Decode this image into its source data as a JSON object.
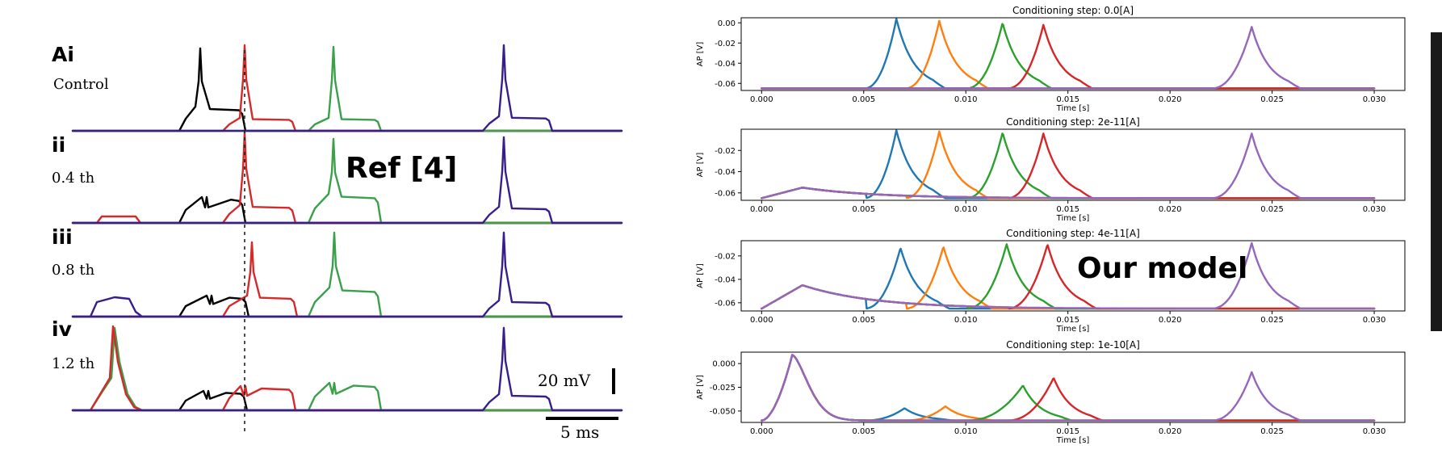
{
  "left_figure": {
    "panels": [
      {
        "letter": "Ai",
        "label": "Control"
      },
      {
        "letter": "ii",
        "label": "0.4 th"
      },
      {
        "letter": "iii",
        "label": "0.8 th"
      },
      {
        "letter": "iv",
        "label": "1.2 th"
      }
    ],
    "overlay_label": "Ref [4]",
    "scale_voltage": "20 mV",
    "scale_time": "5 ms"
  },
  "right_figure": {
    "overlay_label": "Our model",
    "xlabel": "Time [s]",
    "ylabel": "AP [V]"
  },
  "colors": {
    "blue": "#1f77b4",
    "orange": "#ff7f0e",
    "green": "#2ca02c",
    "red": "#d62728",
    "purple": "#9467bd",
    "ref_black": "#000000",
    "ref_red": "#d42a2a",
    "ref_green": "#3aa04a",
    "ref_purple": "#3a1d8c"
  },
  "chart_data": [
    {
      "type": "line",
      "title": "Conditioning step: 0.0[A]",
      "xlabel": "Time [s]",
      "ylabel": "AP [V]",
      "xlim": [
        -0.001,
        0.0315
      ],
      "ylim": [
        -0.067,
        0.005
      ],
      "xticks": [
        0.0,
        0.005,
        0.01,
        0.015,
        0.02,
        0.025,
        0.03
      ],
      "xtick_labels": [
        "0.000",
        "0.005",
        "0.010",
        "0.015",
        "0.020",
        "0.025",
        "0.030"
      ],
      "yticks": [
        0.0,
        -0.02,
        -0.04,
        -0.06
      ],
      "ytick_labels": [
        "0.00",
        "-0.02",
        "-0.04",
        "-0.06"
      ],
      "rest": -0.065,
      "series": [
        {
          "start": 0.005,
          "peak_t": 0.0066,
          "peak_v": 0.004,
          "color": "blue"
        },
        {
          "start": 0.007,
          "peak_t": 0.0087,
          "peak_v": 0.002,
          "color": "orange"
        },
        {
          "start": 0.01,
          "peak_t": 0.0118,
          "peak_v": 0.0,
          "color": "green"
        },
        {
          "start": 0.012,
          "peak_t": 0.0138,
          "peak_v": -0.002,
          "color": "red"
        },
        {
          "start": 0.022,
          "peak_t": 0.024,
          "peak_v": -0.004,
          "color": "purple"
        }
      ]
    },
    {
      "type": "line",
      "title": "Conditioning step: 2e-11[A]",
      "xlabel": "Time [s]",
      "ylabel": "AP [V]",
      "xlim": [
        -0.001,
        0.0315
      ],
      "ylim": [
        -0.067,
        0.0
      ],
      "xticks": [
        0.0,
        0.005,
        0.01,
        0.015,
        0.02,
        0.025,
        0.03
      ],
      "xtick_labels": [
        "0.000",
        "0.005",
        "0.010",
        "0.015",
        "0.020",
        "0.025",
        "0.030"
      ],
      "yticks": [
        -0.02,
        -0.04,
        -0.06
      ],
      "ytick_labels": [
        "-0.02",
        "-0.04",
        "-0.06"
      ],
      "rest": -0.065,
      "conditioning_peak": -0.055,
      "series": [
        {
          "start": 0.005,
          "peak_t": 0.0066,
          "peak_v": -0.001,
          "color": "blue"
        },
        {
          "start": 0.007,
          "peak_t": 0.0087,
          "peak_v": -0.002,
          "color": "orange"
        },
        {
          "start": 0.01,
          "peak_t": 0.0118,
          "peak_v": -0.003,
          "color": "green"
        },
        {
          "start": 0.012,
          "peak_t": 0.0138,
          "peak_v": -0.004,
          "color": "red"
        },
        {
          "start": 0.022,
          "peak_t": 0.024,
          "peak_v": -0.004,
          "color": "purple"
        }
      ]
    },
    {
      "type": "line",
      "title": "Conditioning step: 4e-11[A]",
      "xlabel": "Time [s]",
      "ylabel": "AP [V]",
      "xlim": [
        -0.001,
        0.0315
      ],
      "ylim": [
        -0.067,
        -0.007
      ],
      "xticks": [
        0.0,
        0.005,
        0.01,
        0.015,
        0.02,
        0.025,
        0.03
      ],
      "xtick_labels": [
        "0.000",
        "0.005",
        "0.010",
        "0.015",
        "0.020",
        "0.025",
        "0.030"
      ],
      "yticks": [
        -0.02,
        -0.04,
        -0.06
      ],
      "ytick_labels": [
        "-0.02",
        "-0.04",
        "-0.06"
      ],
      "rest": -0.065,
      "conditioning_peak": -0.045,
      "series": [
        {
          "start": 0.005,
          "peak_t": 0.0068,
          "peak_v": -0.013,
          "color": "blue"
        },
        {
          "start": 0.007,
          "peak_t": 0.0089,
          "peak_v": -0.012,
          "color": "orange"
        },
        {
          "start": 0.01,
          "peak_t": 0.012,
          "peak_v": -0.01,
          "color": "green"
        },
        {
          "start": 0.012,
          "peak_t": 0.014,
          "peak_v": -0.01,
          "color": "red"
        },
        {
          "start": 0.022,
          "peak_t": 0.024,
          "peak_v": -0.009,
          "color": "purple"
        }
      ]
    },
    {
      "type": "line",
      "title": "Conditioning step: 1e-10[A]",
      "xlabel": "Time [s]",
      "ylabel": "AP [V]",
      "xlim": [
        -0.001,
        0.0315
      ],
      "ylim": [
        -0.062,
        0.012
      ],
      "xticks": [
        0.0,
        0.005,
        0.01,
        0.015,
        0.02,
        0.025,
        0.03
      ],
      "xtick_labels": [
        "0.000",
        "0.005",
        "0.010",
        "0.015",
        "0.020",
        "0.025",
        "0.030"
      ],
      "yticks": [
        0.0,
        -0.025,
        -0.05
      ],
      "ytick_labels": [
        "0.000",
        "-0.025",
        "-0.050"
      ],
      "rest": -0.06,
      "conditioning_spike": {
        "peak_t": 0.0015,
        "peak_v": 0.009
      },
      "series": [
        {
          "start": 0.005,
          "peak_t": 0.007,
          "peak_v": -0.047,
          "color": "blue"
        },
        {
          "start": 0.007,
          "peak_t": 0.009,
          "peak_v": -0.045,
          "color": "orange"
        },
        {
          "start": 0.01,
          "peak_t": 0.0128,
          "peak_v": -0.023,
          "color": "green"
        },
        {
          "start": 0.012,
          "peak_t": 0.0143,
          "peak_v": -0.015,
          "color": "red"
        },
        {
          "start": 0.022,
          "peak_t": 0.024,
          "peak_v": -0.009,
          "color": "purple"
        }
      ]
    }
  ]
}
